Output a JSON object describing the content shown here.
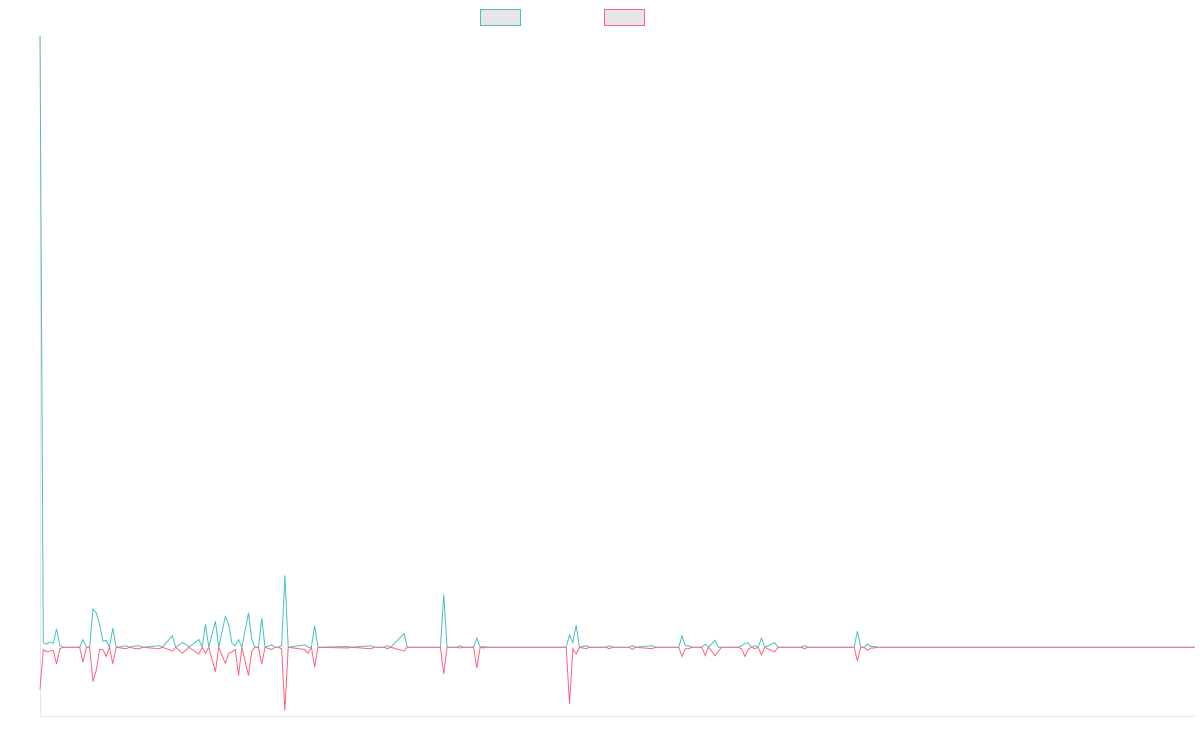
{
  "chart_data": {
    "type": "line",
    "title": "",
    "xlabel": "",
    "ylabel": "",
    "grid": false,
    "legend": {
      "position": "top-center",
      "entries": [
        {
          "name": "",
          "color": "#4bc0c0"
        },
        {
          "name": "",
          "color": "#ff6384"
        }
      ]
    },
    "x_count": 350,
    "ylim": [
      -0.09,
      0.8
    ],
    "series": [
      {
        "name": "",
        "color": "#4bc0c0",
        "points": [
          [
            0,
            0.8
          ],
          [
            1,
            0.006
          ],
          [
            2,
            0.004
          ],
          [
            3,
            0.007
          ],
          [
            4,
            0.005
          ],
          [
            5,
            0.024
          ],
          [
            6,
            0.002
          ],
          [
            7,
            0.0
          ],
          [
            12,
            0.0
          ],
          [
            13,
            0.01
          ],
          [
            14,
            0.0
          ],
          [
            15,
            0.0
          ],
          [
            16,
            0.05
          ],
          [
            17,
            0.045
          ],
          [
            18,
            0.03
          ],
          [
            19,
            0.008
          ],
          [
            20,
            0.009
          ],
          [
            21,
            0.0
          ],
          [
            22,
            0.025
          ],
          [
            23,
            0.0
          ],
          [
            26,
            0.002
          ],
          [
            27,
            0.0
          ],
          [
            29,
            0.002
          ],
          [
            30,
            0.002
          ],
          [
            31,
            0.0
          ],
          [
            36,
            0.002
          ],
          [
            37,
            0.0
          ],
          [
            40,
            0.015
          ],
          [
            41,
            0.0
          ],
          [
            43,
            0.006
          ],
          [
            44,
            0.004
          ],
          [
            45,
            0.0
          ],
          [
            48,
            0.01
          ],
          [
            49,
            0.0
          ],
          [
            50,
            0.03
          ],
          [
            51,
            0.0
          ],
          [
            53,
            0.034
          ],
          [
            54,
            0.0
          ],
          [
            56,
            0.04
          ],
          [
            57,
            0.03
          ],
          [
            58,
            0.005
          ],
          [
            59,
            0.002
          ],
          [
            60,
            0.01
          ],
          [
            61,
            0.0
          ],
          [
            63,
            0.045
          ],
          [
            64,
            0.01
          ],
          [
            65,
            0.0
          ],
          [
            66,
            0.0
          ],
          [
            67,
            0.038
          ],
          [
            68,
            0.0
          ],
          [
            70,
            0.003
          ],
          [
            71,
            0.0
          ],
          [
            72,
            0.0
          ],
          [
            73,
            0.002
          ],
          [
            74,
            0.094
          ],
          [
            75,
            0.0
          ],
          [
            80,
            0.003
          ],
          [
            81,
            0.0
          ],
          [
            82,
            0.0
          ],
          [
            83,
            0.028
          ],
          [
            84,
            0.0
          ],
          [
            93,
            0.001
          ],
          [
            94,
            0.0
          ],
          [
            100,
            0.002
          ],
          [
            101,
            0.0
          ],
          [
            104,
            0.0
          ],
          [
            105,
            0.002
          ],
          [
            106,
            0.0
          ],
          [
            110,
            0.018
          ],
          [
            111,
            0.0
          ],
          [
            121,
            0.0
          ],
          [
            122,
            0.069
          ],
          [
            123,
            0.0
          ],
          [
            126,
            0.0
          ],
          [
            127,
            0.002
          ],
          [
            128,
            0.0
          ],
          [
            131,
            0.0
          ],
          [
            132,
            0.012
          ],
          [
            133,
            0.0
          ],
          [
            134,
            0.001
          ],
          [
            135,
            0.0
          ],
          [
            159,
            0.0
          ],
          [
            160,
            0.016
          ],
          [
            161,
            0.006
          ],
          [
            162,
            0.029
          ],
          [
            163,
            0.0
          ],
          [
            165,
            0.002
          ],
          [
            166,
            0.0
          ],
          [
            171,
            0.0
          ],
          [
            172,
            0.002
          ],
          [
            173,
            0.0
          ],
          [
            178,
            0.0
          ],
          [
            179,
            0.002
          ],
          [
            180,
            0.0
          ],
          [
            185,
            0.002
          ],
          [
            186,
            0.0
          ],
          [
            193,
            0.0
          ],
          [
            194,
            0.015
          ],
          [
            195,
            0.002
          ],
          [
            196,
            0.002
          ],
          [
            197,
            0.0
          ],
          [
            200,
            0.0
          ],
          [
            201,
            0.004
          ],
          [
            202,
            0.0
          ],
          [
            204,
            0.009
          ],
          [
            205,
            0.0
          ],
          [
            211,
            0.0
          ],
          [
            212,
            0.002
          ],
          [
            213,
            0.005
          ],
          [
            214,
            0.006
          ],
          [
            215,
            0.0
          ],
          [
            216,
            0.002
          ],
          [
            217,
            0.0
          ],
          [
            218,
            0.012
          ],
          [
            219,
            0.0
          ],
          [
            222,
            0.006
          ],
          [
            223,
            0.0
          ],
          [
            230,
            0.0
          ],
          [
            231,
            0.002
          ],
          [
            232,
            0.0
          ],
          [
            246,
            0.0
          ],
          [
            247,
            0.021
          ],
          [
            248,
            0.0
          ],
          [
            249,
            0.0
          ],
          [
            250,
            0.004
          ],
          [
            251,
            0.001
          ],
          [
            252,
            0.001
          ],
          [
            253,
            0.0
          ],
          [
            349,
            0.0
          ]
        ]
      },
      {
        "name": "",
        "color": "#ff6384",
        "points": [
          [
            0,
            -0.055
          ],
          [
            1,
            -0.003
          ],
          [
            2,
            -0.006
          ],
          [
            3,
            -0.005
          ],
          [
            4,
            -0.004
          ],
          [
            5,
            -0.022
          ],
          [
            6,
            -0.002
          ],
          [
            7,
            0.0
          ],
          [
            12,
            0.0
          ],
          [
            13,
            -0.02
          ],
          [
            14,
            0.0
          ],
          [
            15,
            0.0
          ],
          [
            16,
            -0.045
          ],
          [
            17,
            -0.03
          ],
          [
            18,
            -0.003
          ],
          [
            19,
            -0.003
          ],
          [
            20,
            -0.012
          ],
          [
            21,
            0.0
          ],
          [
            22,
            -0.022
          ],
          [
            23,
            0.0
          ],
          [
            26,
            -0.002
          ],
          [
            27,
            0.0
          ],
          [
            29,
            -0.002
          ],
          [
            30,
            -0.002
          ],
          [
            31,
            0.0
          ],
          [
            36,
            -0.002
          ],
          [
            37,
            0.0
          ],
          [
            40,
            -0.005
          ],
          [
            41,
            0.0
          ],
          [
            43,
            -0.008
          ],
          [
            44,
            -0.004
          ],
          [
            45,
            0.0
          ],
          [
            48,
            -0.009
          ],
          [
            49,
            0.0
          ],
          [
            50,
            -0.008
          ],
          [
            51,
            0.0
          ],
          [
            53,
            -0.032
          ],
          [
            54,
            0.0
          ],
          [
            56,
            -0.021
          ],
          [
            57,
            -0.008
          ],
          [
            58,
            -0.006
          ],
          [
            59,
            -0.003
          ],
          [
            60,
            -0.037
          ],
          [
            61,
            0.0
          ],
          [
            63,
            -0.037
          ],
          [
            64,
            -0.005
          ],
          [
            65,
            0.0
          ],
          [
            66,
            0.0
          ],
          [
            67,
            -0.022
          ],
          [
            68,
            0.0
          ],
          [
            70,
            -0.003
          ],
          [
            71,
            0.0
          ],
          [
            72,
            0.0
          ],
          [
            73,
            -0.002
          ],
          [
            74,
            -0.083
          ],
          [
            75,
            0.0
          ],
          [
            80,
            -0.003
          ],
          [
            81,
            -0.008
          ],
          [
            82,
            0.0
          ],
          [
            83,
            -0.026
          ],
          [
            84,
            0.0
          ],
          [
            93,
            -0.001
          ],
          [
            94,
            0.0
          ],
          [
            100,
            -0.002
          ],
          [
            101,
            0.0
          ],
          [
            104,
            0.0
          ],
          [
            105,
            -0.002
          ],
          [
            106,
            0.0
          ],
          [
            110,
            -0.005
          ],
          [
            111,
            0.0
          ],
          [
            121,
            0.0
          ],
          [
            122,
            -0.035
          ],
          [
            123,
            0.0
          ],
          [
            126,
            0.0
          ],
          [
            127,
            -0.001
          ],
          [
            128,
            0.0
          ],
          [
            131,
            0.0
          ],
          [
            132,
            -0.027
          ],
          [
            133,
            0.0
          ],
          [
            134,
            -0.001
          ],
          [
            135,
            0.0
          ],
          [
            159,
            0.0
          ],
          [
            160,
            -0.074
          ],
          [
            161,
            -0.002
          ],
          [
            162,
            -0.009
          ],
          [
            163,
            0.0
          ],
          [
            165,
            -0.002
          ],
          [
            166,
            0.0
          ],
          [
            171,
            0.0
          ],
          [
            172,
            -0.002
          ],
          [
            173,
            0.0
          ],
          [
            178,
            0.0
          ],
          [
            179,
            -0.003
          ],
          [
            180,
            0.0
          ],
          [
            185,
            -0.002
          ],
          [
            186,
            0.0
          ],
          [
            193,
            0.0
          ],
          [
            194,
            -0.012
          ],
          [
            195,
            -0.002
          ],
          [
            196,
            -0.002
          ],
          [
            197,
            0.0
          ],
          [
            200,
            0.0
          ],
          [
            201,
            -0.011
          ],
          [
            202,
            0.0
          ],
          [
            204,
            -0.011
          ],
          [
            205,
            -0.005
          ],
          [
            206,
            0.0
          ],
          [
            211,
            0.0
          ],
          [
            212,
            -0.002
          ],
          [
            213,
            -0.012
          ],
          [
            214,
            -0.003
          ],
          [
            215,
            0.0
          ],
          [
            216,
            -0.002
          ],
          [
            217,
            0.0
          ],
          [
            218,
            -0.01
          ],
          [
            219,
            0.0
          ],
          [
            222,
            -0.006
          ],
          [
            223,
            0.0
          ],
          [
            230,
            0.0
          ],
          [
            231,
            -0.002
          ],
          [
            232,
            0.0
          ],
          [
            246,
            0.0
          ],
          [
            247,
            -0.018
          ],
          [
            248,
            0.0
          ],
          [
            249,
            0.0
          ],
          [
            250,
            -0.004
          ],
          [
            251,
            -0.001
          ],
          [
            252,
            -0.001
          ],
          [
            253,
            0.0
          ],
          [
            349,
            0.0
          ]
        ]
      }
    ]
  }
}
